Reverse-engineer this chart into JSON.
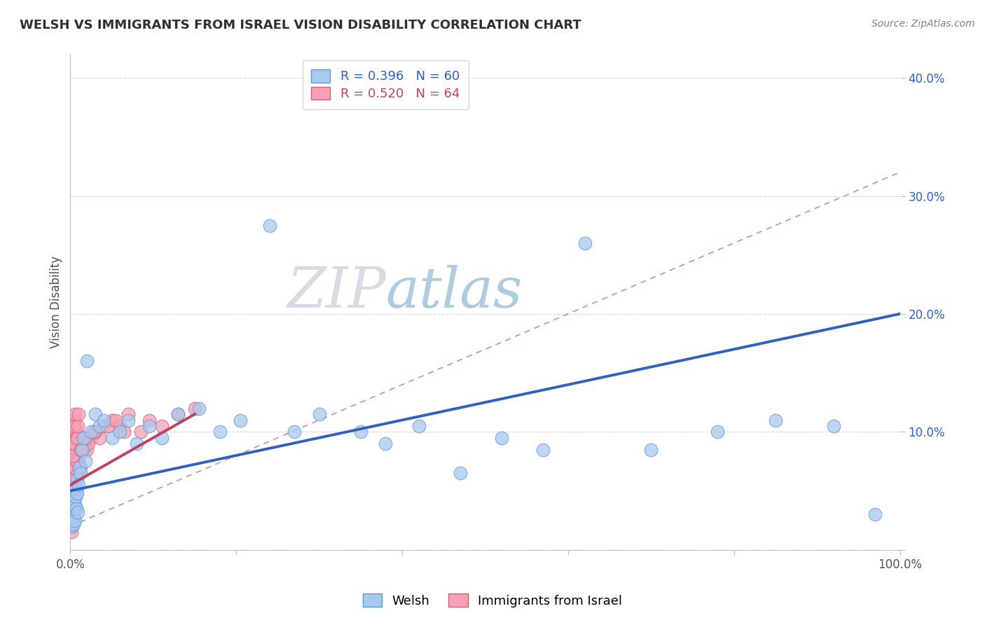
{
  "title": "WELSH VS IMMIGRANTS FROM ISRAEL VISION DISABILITY CORRELATION CHART",
  "source_text": "Source: ZipAtlas.com",
  "ylabel": "Vision Disability",
  "xlim": [
    0,
    100
  ],
  "ylim": [
    0,
    42
  ],
  "y_ticks": [
    0,
    10,
    20,
    30,
    40
  ],
  "y_tick_labels": [
    "",
    "10.0%",
    "20.0%",
    "30.0%",
    "40.0%"
  ],
  "welsh_color": "#a8c8f0",
  "welsh_edge_color": "#5b9bd5",
  "israel_color": "#f5a0b5",
  "israel_edge_color": "#d06080",
  "welsh_R": 0.396,
  "welsh_N": 60,
  "israel_R": 0.52,
  "israel_N": 64,
  "welsh_line_color": "#3060c0",
  "israel_line_color": "#c04060",
  "dashed_line_color": "#d08090",
  "background_color": "#ffffff",
  "grid_color": "#cccccc",
  "title_color": "#303030",
  "source_color": "#808080",
  "watermark_zip_color": "#c8d4e8",
  "watermark_atlas_color": "#90b8d8",
  "welsh_scatter_x": [
    0.15,
    0.18,
    0.2,
    0.22,
    0.25,
    0.28,
    0.3,
    0.32,
    0.35,
    0.38,
    0.4,
    0.42,
    0.45,
    0.48,
    0.5,
    0.52,
    0.55,
    0.6,
    0.65,
    0.7,
    0.75,
    0.8,
    0.85,
    0.9,
    1.0,
    1.1,
    1.2,
    1.4,
    1.6,
    1.8,
    2.0,
    2.5,
    3.0,
    3.5,
    4.0,
    5.0,
    6.0,
    7.0,
    8.0,
    9.5,
    11.0,
    13.0,
    15.5,
    18.0,
    20.5,
    24.0,
    27.0,
    30.0,
    35.0,
    38.0,
    42.0,
    47.0,
    52.0,
    57.0,
    62.0,
    70.0,
    78.0,
    85.0,
    92.0,
    97.0
  ],
  "welsh_scatter_y": [
    2.5,
    3.0,
    2.8,
    3.5,
    2.0,
    3.2,
    4.0,
    2.5,
    3.8,
    2.2,
    4.5,
    3.0,
    2.8,
    3.5,
    4.2,
    2.5,
    5.0,
    3.8,
    4.5,
    5.2,
    3.5,
    6.0,
    4.8,
    3.2,
    5.5,
    7.0,
    6.5,
    8.5,
    9.5,
    7.5,
    16.0,
    10.0,
    11.5,
    10.5,
    11.0,
    9.5,
    10.0,
    11.0,
    9.0,
    10.5,
    9.5,
    11.5,
    12.0,
    10.0,
    11.0,
    27.5,
    10.0,
    11.5,
    10.0,
    9.0,
    10.5,
    6.5,
    9.5,
    8.5,
    26.0,
    8.5,
    10.0,
    11.0,
    10.5,
    3.0
  ],
  "israel_scatter_x": [
    0.08,
    0.1,
    0.12,
    0.14,
    0.16,
    0.18,
    0.2,
    0.22,
    0.25,
    0.28,
    0.3,
    0.32,
    0.35,
    0.38,
    0.4,
    0.42,
    0.45,
    0.48,
    0.5,
    0.55,
    0.6,
    0.65,
    0.7,
    0.75,
    0.8,
    0.85,
    0.9,
    1.0,
    1.1,
    1.2,
    1.4,
    1.6,
    1.8,
    2.0,
    2.5,
    3.0,
    3.5,
    4.0,
    5.0,
    6.0,
    7.0,
    8.5,
    9.5,
    11.0,
    13.0,
    15.0,
    3.0,
    4.5,
    1.5,
    2.2,
    0.6,
    0.7,
    0.3,
    0.4,
    5.5,
    6.5,
    1.2,
    1.8,
    0.5,
    0.55,
    0.8,
    0.9,
    1.0,
    2.8
  ],
  "israel_scatter_y": [
    2.0,
    3.5,
    1.5,
    4.5,
    2.5,
    5.5,
    3.0,
    6.0,
    4.0,
    7.0,
    5.0,
    8.0,
    6.0,
    9.0,
    7.0,
    10.0,
    8.5,
    11.0,
    9.5,
    10.5,
    9.0,
    10.0,
    8.0,
    9.5,
    7.5,
    8.5,
    6.5,
    7.5,
    8.0,
    7.0,
    9.0,
    8.5,
    9.0,
    8.5,
    9.5,
    10.0,
    9.5,
    10.5,
    11.0,
    10.5,
    11.5,
    10.0,
    11.0,
    10.5,
    11.5,
    12.0,
    10.0,
    10.5,
    9.5,
    9.0,
    8.5,
    7.5,
    8.0,
    9.0,
    11.0,
    10.0,
    8.5,
    9.5,
    10.5,
    11.5,
    9.5,
    10.5,
    11.5,
    10.0
  ],
  "welsh_line_x0": 0,
  "welsh_line_y0": 5.0,
  "welsh_line_x1": 100,
  "welsh_line_y1": 20.0,
  "israel_line_x0": 0,
  "israel_line_y0": 5.5,
  "israel_line_x1": 15,
  "israel_line_y1": 11.5,
  "dashed_line_x0": 0,
  "dashed_line_y0": 2.0,
  "dashed_line_x1": 100,
  "dashed_line_y1": 32.0
}
